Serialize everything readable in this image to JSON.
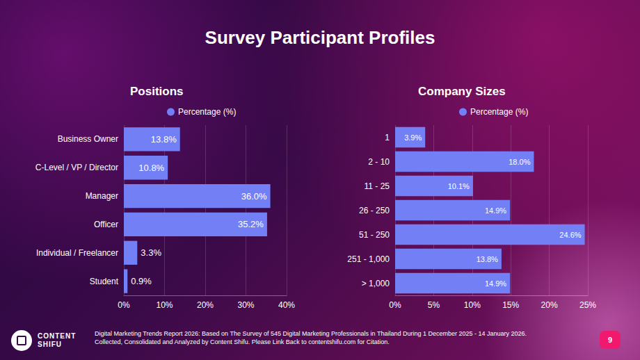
{
  "title": "Survey Participant Profiles",
  "chart_data": [
    {
      "type": "bar",
      "title": "Positions",
      "orientation": "horizontal",
      "categories": [
        "Business Owner",
        "C-Level / VP / Director",
        "Manager",
        "Officer",
        "Individual / Freelancer",
        "Student"
      ],
      "series": [
        {
          "name": "Percentage (%)",
          "color": "#7380f5",
          "values": [
            13.8,
            10.8,
            36.0,
            35.2,
            3.3,
            0.9
          ],
          "value_labels": [
            "13.8%",
            "10.8%",
            "36.0%",
            "35.2%",
            "3.3%",
            "0.9%"
          ]
        }
      ],
      "xlim": [
        0,
        40
      ],
      "xticks": [
        {
          "value": 0,
          "label": "0%"
        },
        {
          "value": 10,
          "label": "10%"
        },
        {
          "value": 20,
          "label": "20%"
        },
        {
          "value": 30,
          "label": "30%"
        },
        {
          "value": 40,
          "label": "40%"
        }
      ],
      "grid": true,
      "legend": "top",
      "data_labels": true
    },
    {
      "type": "bar",
      "title": "Company Sizes",
      "orientation": "horizontal",
      "categories": [
        "1",
        "2 - 10",
        "11 - 25",
        "26 - 250",
        "51 - 250",
        "251 - 1,000",
        "> 1,000"
      ],
      "series": [
        {
          "name": "Percentage (%)",
          "color": "#7380f5",
          "values": [
            3.9,
            18.0,
            10.1,
            14.9,
            24.6,
            13.8,
            14.9
          ],
          "value_labels": [
            "3.9%",
            "18.0%",
            "10.1%",
            "14.9%",
            "24.6%",
            "13.8%",
            "14.9%"
          ]
        }
      ],
      "xlim": [
        0,
        25
      ],
      "xticks": [
        {
          "value": 0,
          "label": "0%"
        },
        {
          "value": 5,
          "label": "5%"
        },
        {
          "value": 10,
          "label": "10%"
        },
        {
          "value": 15,
          "label": "15%"
        },
        {
          "value": 20,
          "label": "20%"
        },
        {
          "value": 25,
          "label": "25%"
        }
      ],
      "grid": true,
      "legend": "top",
      "data_labels": true
    }
  ],
  "footer": [
    "Digital Marketing Trends Report 2026: Based on The Survey of 545 Digital Marketing Professionals in Thailand During 1 December 2025 - 14 January 2026.",
    "Collected, Consolidated and Analyzed by Content Shifu. Please Link Back to contentshifu.com for Citation."
  ],
  "brand": [
    "CONTENT",
    "SHIFU"
  ],
  "page_number": "9"
}
